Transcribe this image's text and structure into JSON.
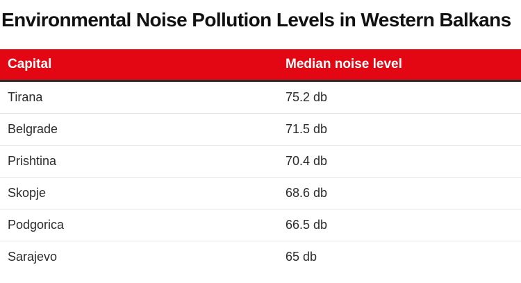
{
  "chart_data": {
    "type": "table",
    "title": "Environmental Noise Pollution Levels in Western Balkans",
    "columns": [
      "Capital",
      "Median noise level"
    ],
    "rows": [
      {
        "capital": "Tirana",
        "level_label": "75.2 db",
        "value": 75.2
      },
      {
        "capital": "Belgrade",
        "level_label": "71.5 db",
        "value": 71.5
      },
      {
        "capital": "Prishtina",
        "level_label": "70.4 db",
        "value": 70.4
      },
      {
        "capital": "Skopje",
        "level_label": "68.6 db",
        "value": 68.6
      },
      {
        "capital": "Podgorica",
        "level_label": "66.5 db",
        "value": 66.5
      },
      {
        "capital": "Sarajevo",
        "level_label": "65 db",
        "value": 65
      }
    ]
  },
  "colors": {
    "header_background": "#e30613",
    "header_text": "#ffffff",
    "header_rule": "#2a2a2a",
    "row_divider": "#e6e6e6"
  }
}
